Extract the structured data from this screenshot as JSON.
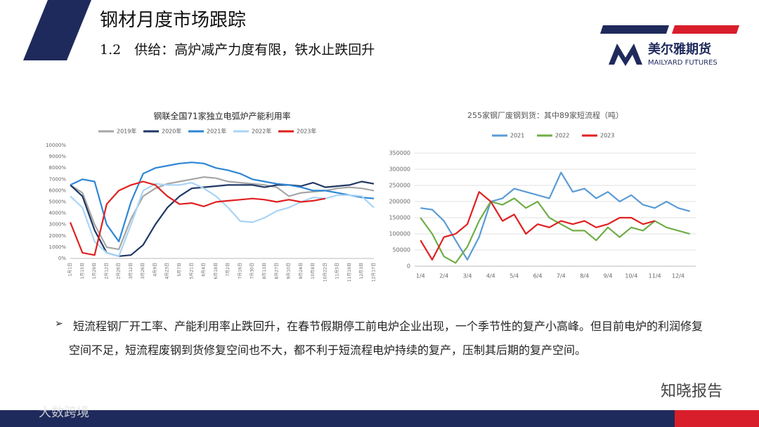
{
  "header": {
    "title": "钢材月度市场跟踪",
    "subtitle": "1.2　供给：高炉减产力度有限，铁水止跌回升"
  },
  "logo": {
    "name": "美尔雅期货",
    "english": "MAILYARD FUTURES"
  },
  "bullet": "短流程钢厂开工率、产能利用率止跌回升，在春节假期停工前电炉企业出现，一个季节性的复产小高峰。但目前电炉的利润修复空间不足，短流程废钢到货修复空间也不大，都不利于短流程电炉持续的复产，压制其后期的复产空间。",
  "watermark": "知晓报告",
  "footer_mark": "大数跨境",
  "chart_data": [
    {
      "type": "line",
      "title": "钢联全国71家独立电弧炉产能利用率",
      "categories": [
        "1月1日",
        "1月15日",
        "1月29日",
        "2月12日",
        "2月26日",
        "3月12日",
        "3月26日",
        "4月9日",
        "4月23日",
        "5月7日",
        "5月21日",
        "6月4日",
        "6月18日",
        "7月2日",
        "7月16日",
        "7月30日",
        "8月13日",
        "8月27日",
        "9月10日",
        "9月24日",
        "10月8日",
        "10月22日",
        "11月5日",
        "11月19日",
        "12月3日",
        "12月17日"
      ],
      "series": [
        {
          "name": "2019年",
          "color": "#a6a6a6",
          "values": [
            6500,
            5800,
            3000,
            1000,
            800,
            3500,
            5500,
            6200,
            6600,
            6800,
            7000,
            7200,
            7100,
            6800,
            6700,
            6600,
            6500,
            6300,
            5500,
            5800,
            5900,
            6000,
            6200,
            6300,
            6200,
            6000
          ]
        },
        {
          "name": "2020年",
          "color": "#1f3864",
          "values": [
            6500,
            5500,
            2500,
            500,
            200,
            300,
            1200,
            3000,
            4500,
            5500,
            6200,
            6300,
            6400,
            6500,
            6500,
            6500,
            6300,
            6500,
            6500,
            6400,
            6700,
            6300,
            6400,
            6500,
            6800,
            6600
          ]
        },
        {
          "name": "2021年",
          "color": "#2e86d4",
          "values": [
            6500,
            7000,
            6800,
            3000,
            1500,
            5000,
            7500,
            8000,
            8200,
            8400,
            8500,
            8400,
            8000,
            7800,
            7500,
            7000,
            6800,
            6600,
            6500,
            6300,
            6000,
            6000,
            5800,
            5600,
            5400,
            5300
          ]
        },
        {
          "name": "2022年",
          "color": "#a9d4f5",
          "values": [
            5500,
            4500,
            1500,
            500,
            200,
            3000,
            6000,
            6600,
            6500,
            6500,
            6700,
            6200,
            5500,
            4500,
            3300,
            3200,
            3600,
            4200,
            4500,
            5000,
            5400,
            5300,
            5600,
            5600,
            5500,
            4500
          ]
        },
        {
          "name": "2023年",
          "color": "#e02020",
          "values": [
            3200,
            500,
            300,
            4800,
            6000,
            6500,
            6800,
            6500,
            5500,
            4800,
            4900,
            4600,
            5000,
            5100,
            5200,
            5300,
            5200,
            5000,
            5200,
            5000,
            5100,
            5300,
            null,
            null,
            null,
            null
          ]
        }
      ],
      "ylim": [
        0,
        10000
      ],
      "yticks": [
        {
          "value": 0,
          "label": "0%"
        },
        {
          "value": 1000,
          "label": "1000%"
        },
        {
          "value": 2000,
          "label": "2000%"
        },
        {
          "value": 3000,
          "label": "3000%"
        },
        {
          "value": 4000,
          "label": "4000%"
        },
        {
          "value": 5000,
          "label": "5000%"
        },
        {
          "value": 6000,
          "label": "6000%"
        },
        {
          "value": 7000,
          "label": "7000%"
        },
        {
          "value": 8000,
          "label": "8000%"
        },
        {
          "value": 9000,
          "label": "9000%"
        },
        {
          "value": 10000,
          "label": "10000%"
        }
      ],
      "grid": false,
      "legend": "top"
    },
    {
      "type": "line",
      "title": "255家钢厂废钢到货：其中89家短流程（吨）",
      "categories": [
        "1/4",
        null,
        "2/4",
        null,
        "3/4",
        null,
        "4/4",
        null,
        "5/4",
        null,
        "6/4",
        null,
        "7/4",
        null,
        "8/4",
        null,
        "9/4",
        null,
        "10/4",
        null,
        "11/4",
        null,
        "12/4",
        null
      ],
      "series": [
        {
          "name": "2021",
          "color": "#5b9bd5",
          "values": [
            180000,
            175000,
            140000,
            80000,
            20000,
            90000,
            200000,
            210000,
            240000,
            230000,
            220000,
            210000,
            290000,
            230000,
            240000,
            210000,
            230000,
            200000,
            220000,
            190000,
            180000,
            200000,
            180000,
            170000
          ]
        },
        {
          "name": "2022",
          "color": "#70ad47",
          "values": [
            150000,
            100000,
            30000,
            10000,
            60000,
            140000,
            200000,
            190000,
            210000,
            180000,
            200000,
            150000,
            130000,
            110000,
            110000,
            80000,
            120000,
            90000,
            120000,
            110000,
            140000,
            120000,
            110000,
            100000
          ]
        },
        {
          "name": "2023",
          "color": "#e02020",
          "values": [
            80000,
            20000,
            90000,
            100000,
            130000,
            230000,
            200000,
            140000,
            160000,
            100000,
            130000,
            120000,
            140000,
            130000,
            140000,
            120000,
            130000,
            150000,
            150000,
            130000,
            140000,
            null,
            null,
            null
          ]
        }
      ],
      "ylim": [
        0,
        350000
      ],
      "yticks": [
        0,
        50000,
        100000,
        150000,
        200000,
        250000,
        300000,
        350000
      ],
      "grid": true,
      "legend": "top"
    }
  ]
}
